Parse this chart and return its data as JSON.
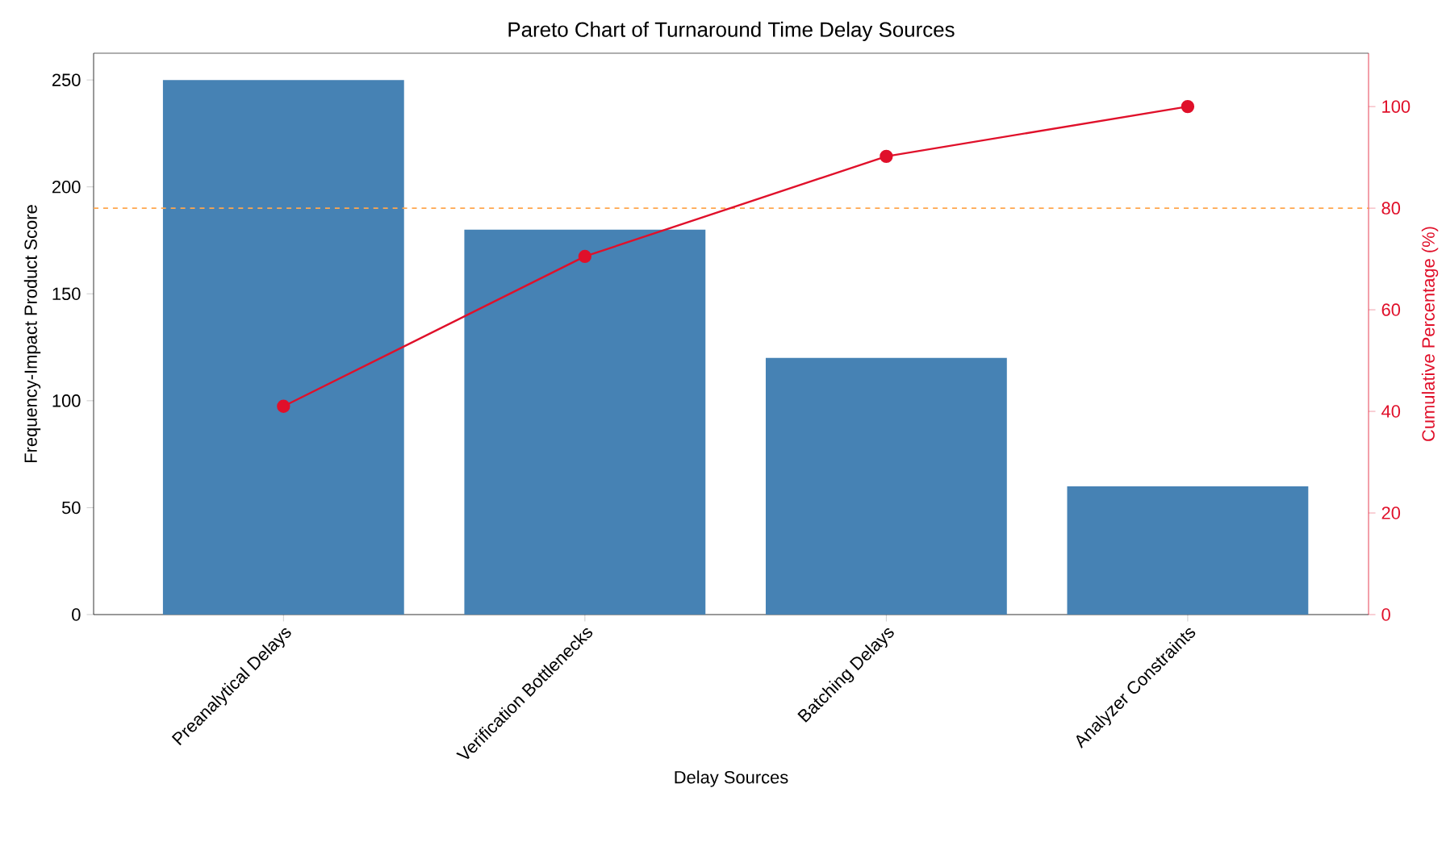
{
  "chart_data": {
    "type": "bar",
    "title": "Pareto Chart of Turnaround Time Delay Sources",
    "xlabel": "Delay Sources",
    "ylabel": "Frequency-Impact Product Score",
    "y2label": "Cumulative Percentage (%)",
    "categories": [
      "Preanalytical Delays",
      "Verification Bottlenecks",
      "Batching Delays",
      "Analyzer Constraints"
    ],
    "series": [
      {
        "color": "#4682b4",
        "values": [
          250,
          180,
          120,
          60
        ]
      },
      {
        "type": "line",
        "axis": "y2",
        "color": "#e0102a",
        "marker": "circle",
        "line_style": "solid",
        "values": [
          41.0,
          70.5,
          90.2,
          100
        ]
      }
    ],
    "ylim": [
      0,
      262.5
    ],
    "yticks": [
      0,
      50,
      100,
      150,
      200,
      250
    ],
    "y2lim": [
      0,
      110.5
    ],
    "y2ticks": [
      0,
      20,
      40,
      60,
      80,
      100
    ],
    "ref_lines": [
      {
        "axis": "y2",
        "value": 80,
        "color": "#ffa64d",
        "line_style": "dashed"
      }
    ],
    "grid": false,
    "legend": false
  }
}
